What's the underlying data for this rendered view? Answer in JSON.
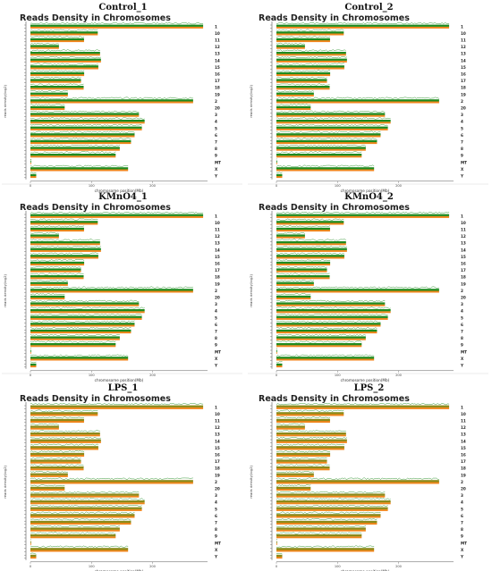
{
  "colors": {
    "green": "#1e8b1e",
    "orange": "#f0861c",
    "olive": "#8a8a1a",
    "axis": "#555555"
  },
  "panels": [
    {
      "label": "Control_1",
      "title": "Reads Density in Chromosomes",
      "mix": "green"
    },
    {
      "label": "Control_2",
      "title": "Reads Density in Chromosomes",
      "mix": "green"
    },
    {
      "label": "KMnO4_1",
      "title": "Reads Density in Chromosomes",
      "mix": "green"
    },
    {
      "label": "KMnO4_2",
      "title": "Reads Density in Chromosomes",
      "mix": "green"
    },
    {
      "label": "LPS_1",
      "title": "Reads Density in Chromosomes",
      "mix": "olive"
    },
    {
      "label": "LPS_2",
      "title": "Reads Density in Chromosomes",
      "mix": "olive"
    }
  ],
  "chart_data": {
    "type": "bar",
    "xlabel": "chromosome position(Mb)",
    "ylabel": "reads density(log2)",
    "xticks": [
      "0",
      "100",
      "200"
    ],
    "categories": [
      "1",
      "10",
      "11",
      "12",
      "13",
      "14",
      "15",
      "16",
      "17",
      "18",
      "19",
      "2",
      "20",
      "3",
      "4",
      "5",
      "6",
      "7",
      "8",
      "9",
      "MT",
      "X",
      "Y"
    ],
    "lengths_mb": [
      282.8,
      110.3,
      87.8,
      46.7,
      114.0,
      115.5,
      111.2,
      88.0,
      82.8,
      87.2,
      61.3,
      266.4,
      56.1,
      177.7,
      187.0,
      182.5,
      170.6,
      164.7,
      146.3,
      139.6,
      0.016,
      159.9,
      9.5
    ],
    "xlim": [
      0,
      290
    ]
  }
}
